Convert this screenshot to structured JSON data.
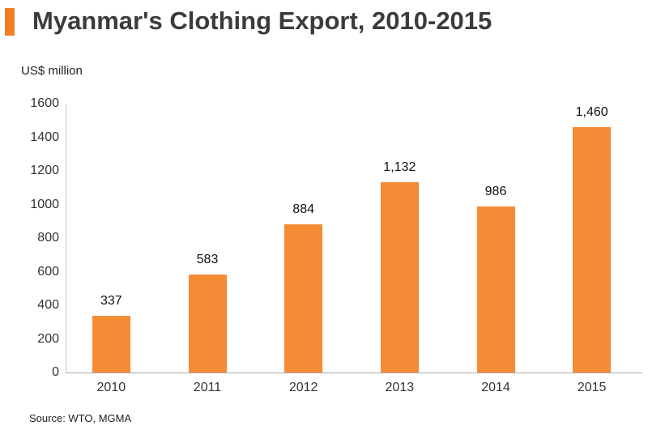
{
  "header": {
    "title": "Myanmar's Clothing Export, 2010-2015",
    "accent_color": "#F07F21"
  },
  "unit_label": "US$ million",
  "source": "Source: WTO, MGMA",
  "colors": {
    "bar": "#F58B35",
    "title_text": "#3B3B3B"
  },
  "y_ticks": [
    "0",
    "200",
    "400",
    "600",
    "800",
    "1000",
    "1200",
    "1400",
    "1600"
  ],
  "bars": [
    {
      "year": "2010",
      "value": 337,
      "label": "337"
    },
    {
      "year": "2011",
      "value": 583,
      "label": "583"
    },
    {
      "year": "2012",
      "value": 884,
      "label": "884"
    },
    {
      "year": "2013",
      "value": 1132,
      "label": "1,132"
    },
    {
      "year": "2014",
      "value": 986,
      "label": "986"
    },
    {
      "year": "2015",
      "value": 1460,
      "label": "1,460"
    }
  ],
  "chart_data": {
    "type": "bar",
    "title": "Myanmar's Clothing Export, 2010-2015",
    "xlabel": "",
    "ylabel": "US$ million",
    "categories": [
      "2010",
      "2011",
      "2012",
      "2013",
      "2014",
      "2015"
    ],
    "values": [
      337,
      583,
      884,
      1132,
      986,
      1460
    ],
    "data_labels": [
      "337",
      "583",
      "884",
      "1,132",
      "986",
      "1,460"
    ],
    "ylim": [
      0,
      1600
    ],
    "y_ticks": [
      0,
      200,
      400,
      600,
      800,
      1000,
      1200,
      1400,
      1600
    ],
    "grid": false,
    "legend": "none",
    "source": "Source: WTO, MGMA",
    "bar_color": "#F58B35"
  }
}
